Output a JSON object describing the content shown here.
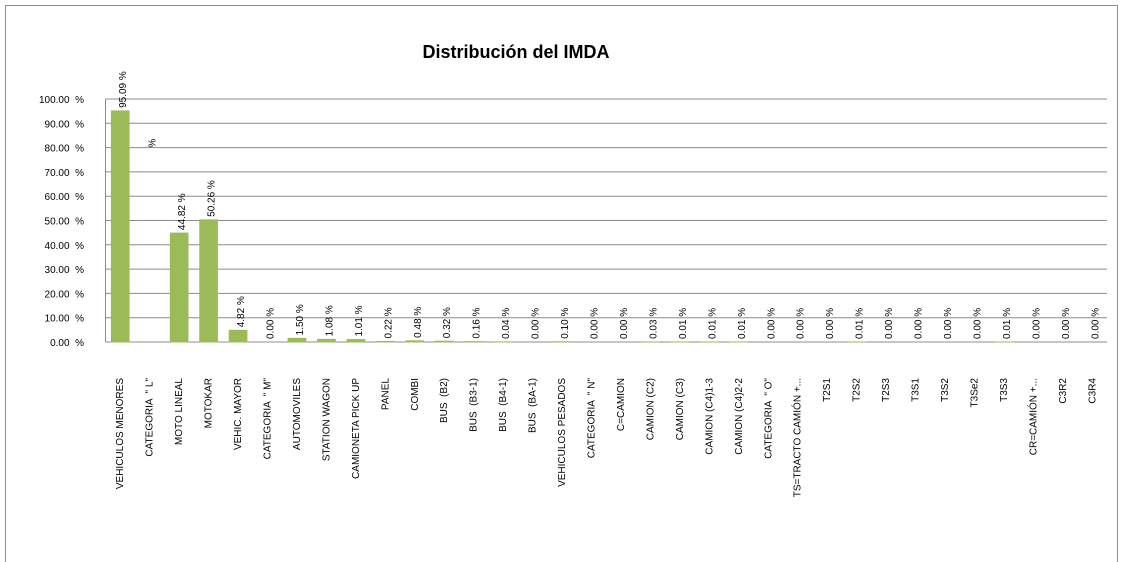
{
  "chart_data": {
    "type": "bar",
    "title": "Distribución del IMDA",
    "categories": [
      "VEHICULOS MENORES",
      "CATEGORIA  \" L\"",
      "MOTO LINEAL",
      "MOTOKAR",
      "VEHIC. MAYOR",
      "CATEGORIA  \" M\"",
      "AUTOMOVILES",
      "STATION WAGON",
      "CAMIONETA PICK UP",
      "PANEL",
      "COMBI",
      "BUS  (B2)",
      "BUS  (B3-1)",
      "BUS  (B4-1)",
      "BUS  (BA-1)",
      "VEHICULOS PESADOS",
      "CATEGORIA  \" N\"",
      "C=CAMION",
      "CAMION (C2)",
      "CAMION (C3)",
      "CAMION (C4)1-3",
      "CAMION (C4)2-2",
      "CATEGORIA  \" O\"",
      "TS=TRACTO CAMIÓN +...",
      "T2S1",
      "T2S2",
      "T2S3",
      "T3S1",
      "T3S2",
      "T3Se2",
      "T3S3",
      "CR=CAMIÓN +...",
      "C3R2",
      "C3R4"
    ],
    "values": [
      95.09,
      null,
      44.82,
      50.26,
      4.82,
      0.0,
      1.5,
      1.08,
      1.01,
      0.22,
      0.48,
      0.32,
      0.16,
      0.04,
      0.0,
      0.1,
      0.0,
      0.0,
      0.03,
      0.01,
      0.01,
      0.01,
      0.0,
      0.0,
      0.0,
      0.01,
      0.0,
      0.0,
      0.0,
      0.0,
      0.01,
      0.0,
      0.0,
      0.0
    ],
    "value_labels": [
      "95.09 %",
      "%",
      "44.82 %",
      "50.26 %",
      "4.82 %",
      "0.00 %",
      "1.50 %",
      "1.08 %",
      "1.01 %",
      "0.22 %",
      "0.48 %",
      "0.32 %",
      "0.16 %",
      "0.04 %",
      "0.00 %",
      "0.10 %",
      "0.00 %",
      "0.00 %",
      "0.03 %",
      "0.01 %",
      "0.01 %",
      "0.01 %",
      "0.00 %",
      "0.00 %",
      "0.00 %",
      "0.01 %",
      "0.00 %",
      "0.00 %",
      "0.00 %",
      "0.00 %",
      "0.01 %",
      "0.00 %",
      "0.00 %",
      "0.00 %"
    ],
    "color": "#9bbb59",
    "ylim": [
      0,
      100
    ],
    "yticks": [
      {
        "value": 0,
        "label": "0.00  %"
      },
      {
        "value": 10,
        "label": "10.00  %"
      },
      {
        "value": 20,
        "label": "20.00  %"
      },
      {
        "value": 30,
        "label": "30.00  %"
      },
      {
        "value": 40,
        "label": "40.00  %"
      },
      {
        "value": 50,
        "label": "50.00  %"
      },
      {
        "value": 60,
        "label": "60.00  %"
      },
      {
        "value": 70,
        "label": "70.00  %"
      },
      {
        "value": 80,
        "label": "80.00  %"
      },
      {
        "value": 90,
        "label": "90.00  %"
      },
      {
        "value": 100,
        "label": "100.00  %"
      }
    ],
    "grid": true
  }
}
